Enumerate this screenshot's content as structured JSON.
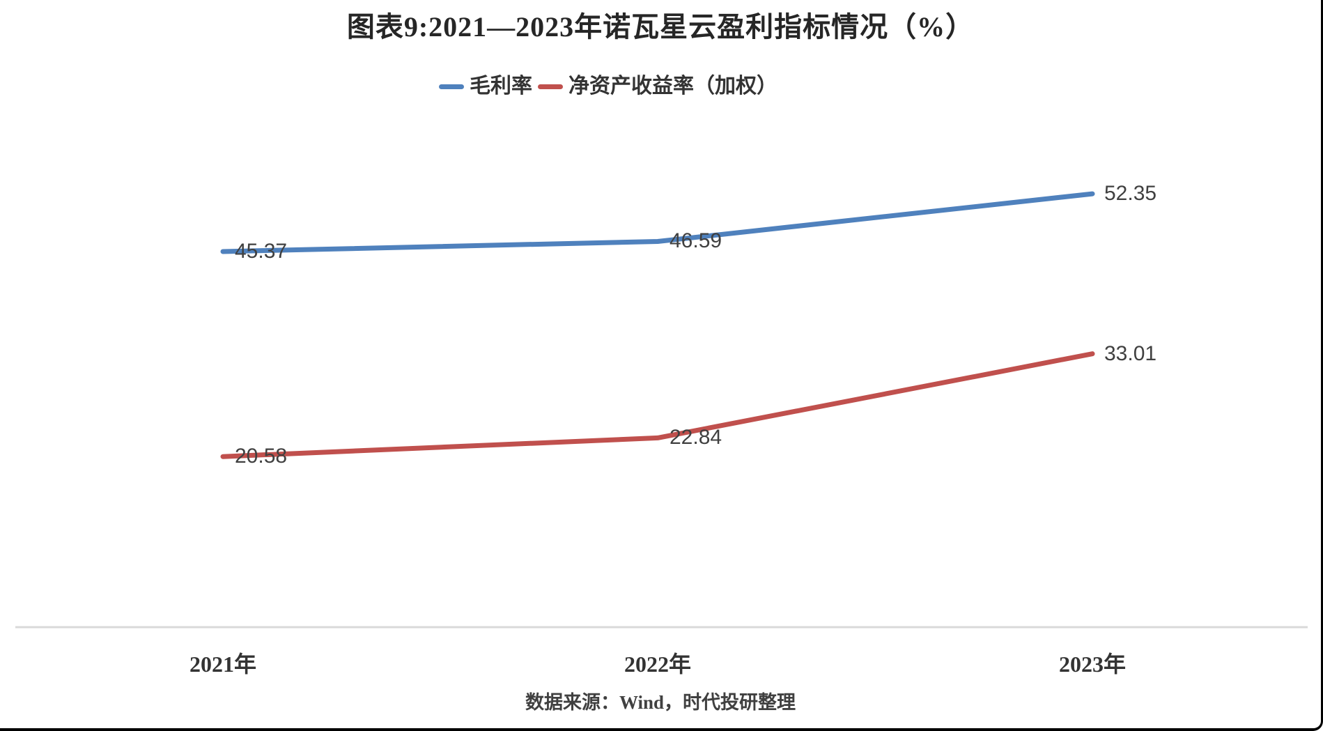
{
  "chart_data": {
    "type": "line",
    "title": "图表9:2021—2023年诺瓦星云盈利指标情况（%）",
    "categories": [
      "2021年",
      "2022年",
      "2023年"
    ],
    "series": [
      {
        "name": "毛利率",
        "color": "#4F81BD",
        "values": [
          45.37,
          46.59,
          52.35
        ]
      },
      {
        "name": "净资产收益率（加权）",
        "color": "#C0504D",
        "values": [
          20.58,
          22.84,
          33.01
        ]
      }
    ],
    "ylim": [
      0,
      60
    ],
    "grid": "off",
    "legend_position": "top",
    "data_labels": true,
    "axis_line_color": "#D9D9D9",
    "data_label_color": "#404040"
  },
  "source_text": "数据来源：Wind，时代投研整理"
}
